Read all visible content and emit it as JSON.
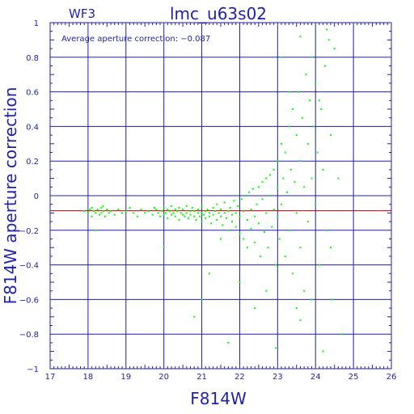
{
  "chart_data": {
    "type": "scatter",
    "title": "lmc_u63s02",
    "corner_label": "WF3",
    "annotation": "Average aperture correction: −0.087",
    "xlabel": "F814W",
    "ylabel": "F814W aperture correction",
    "xlim": [
      17,
      26
    ],
    "ylim": [
      -1,
      1
    ],
    "x_ticks": [
      17,
      18,
      19,
      20,
      21,
      22,
      23,
      24,
      25,
      26
    ],
    "x_tick_labels": [
      "17",
      "18",
      "19",
      "20",
      "21",
      "22",
      "23",
      "24",
      "25",
      "26"
    ],
    "y_ticks": [
      -1,
      -0.8,
      -0.6,
      -0.4,
      -0.2,
      0,
      0.2,
      0.4,
      0.6,
      0.8,
      1
    ],
    "y_tick_labels": [
      "−1",
      "−0.8",
      "−0.6",
      "−0.4",
      "−0.2",
      "0",
      "0.2",
      "0.4",
      "0.6",
      "0.8",
      "1"
    ],
    "grid": true,
    "average_line": -0.087,
    "colors": {
      "points": "#00ff00",
      "average_line": "#c00000",
      "axes": "#1f1fb0",
      "grid": "#1f1fb0"
    },
    "series": [
      {
        "points": [
          [
            17.9,
            -0.09
          ],
          [
            18.0,
            -0.1
          ],
          [
            18.05,
            -0.08
          ],
          [
            18.1,
            -0.07
          ],
          [
            18.1,
            -0.12
          ],
          [
            18.15,
            -0.09
          ],
          [
            18.2,
            -0.1
          ],
          [
            18.2,
            -0.2
          ],
          [
            18.25,
            -0.08
          ],
          [
            18.3,
            -0.11
          ],
          [
            18.35,
            -0.07
          ],
          [
            18.35,
            -0.1
          ],
          [
            18.4,
            -0.09
          ],
          [
            18.4,
            -0.06
          ],
          [
            18.45,
            -0.12
          ],
          [
            18.5,
            -0.08
          ],
          [
            18.55,
            -0.1
          ],
          [
            18.6,
            -0.09
          ],
          [
            18.7,
            -0.11
          ],
          [
            18.8,
            -0.08
          ],
          [
            18.9,
            -0.1
          ],
          [
            19.0,
            -0.09
          ],
          [
            19.1,
            -0.07
          ],
          [
            19.2,
            -0.1
          ],
          [
            19.3,
            -0.12
          ],
          [
            19.4,
            -0.08
          ],
          [
            19.5,
            -0.1
          ],
          [
            19.6,
            -0.09
          ],
          [
            19.7,
            -0.11
          ],
          [
            19.75,
            -0.07
          ],
          [
            19.8,
            -0.08
          ],
          [
            19.85,
            -0.1
          ],
          [
            19.9,
            -0.12
          ],
          [
            19.95,
            -0.09
          ],
          [
            20.0,
            -0.07
          ],
          [
            20.0,
            -0.11
          ],
          [
            20.05,
            -0.1
          ],
          [
            20.1,
            -0.08
          ],
          [
            20.1,
            -0.13
          ],
          [
            20.15,
            -0.09
          ],
          [
            20.2,
            -0.06
          ],
          [
            20.2,
            -0.11
          ],
          [
            20.25,
            -0.1
          ],
          [
            20.3,
            -0.12
          ],
          [
            20.3,
            -0.08
          ],
          [
            20.35,
            -0.09
          ],
          [
            20.4,
            -0.14
          ],
          [
            20.4,
            -0.07
          ],
          [
            20.45,
            -0.1
          ],
          [
            20.5,
            -0.11
          ],
          [
            20.5,
            -0.08
          ],
          [
            20.55,
            -0.12
          ],
          [
            20.6,
            -0.1
          ],
          [
            20.6,
            -0.06
          ],
          [
            20.65,
            -0.13
          ],
          [
            20.7,
            -0.09
          ],
          [
            20.7,
            -0.11
          ],
          [
            20.75,
            -0.07
          ],
          [
            20.8,
            -0.12
          ],
          [
            20.8,
            -0.09
          ],
          [
            20.85,
            -0.14
          ],
          [
            20.9,
            -0.1
          ],
          [
            20.9,
            -0.08
          ],
          [
            20.95,
            -0.12
          ],
          [
            21.0,
            -0.1
          ],
          [
            21.0,
            -0.15
          ],
          [
            21.0,
            -0.06
          ],
          [
            21.05,
            -0.11
          ],
          [
            21.1,
            -0.09
          ],
          [
            21.1,
            -0.13
          ],
          [
            21.15,
            -0.08
          ],
          [
            21.2,
            -0.12
          ],
          [
            21.2,
            -0.1
          ],
          [
            21.25,
            -0.16
          ],
          [
            21.3,
            -0.07
          ],
          [
            21.3,
            -0.11
          ],
          [
            21.35,
            -0.09
          ],
          [
            21.4,
            -0.14
          ],
          [
            21.4,
            -0.05
          ],
          [
            21.45,
            -0.1
          ],
          [
            21.5,
            -0.12
          ],
          [
            21.5,
            -0.08
          ],
          [
            21.55,
            -0.17
          ],
          [
            21.6,
            -0.1
          ],
          [
            21.6,
            -0.04
          ],
          [
            21.65,
            -0.13
          ],
          [
            21.7,
            -0.09
          ],
          [
            21.7,
            -0.2
          ],
          [
            21.75,
            -0.07
          ],
          [
            21.8,
            -0.11
          ],
          [
            21.8,
            -0.15
          ],
          [
            21.85,
            -0.03
          ],
          [
            21.9,
            -0.1
          ],
          [
            21.9,
            -0.18
          ],
          [
            21.95,
            -0.06
          ],
          [
            22.0,
            -0.12
          ],
          [
            22.0,
            -0.22
          ],
          [
            22.05,
            -0.02
          ],
          [
            22.1,
            -0.09
          ],
          [
            22.1,
            -0.25
          ],
          [
            22.15,
            0.0
          ],
          [
            22.2,
            -0.14
          ],
          [
            22.2,
            -0.3
          ],
          [
            22.25,
            0.02
          ],
          [
            22.3,
            -0.08
          ],
          [
            22.3,
            -0.19
          ],
          [
            22.35,
            0.04
          ],
          [
            22.4,
            -0.12
          ],
          [
            22.4,
            -0.27
          ],
          [
            22.45,
            -0.05
          ],
          [
            22.5,
            0.05
          ],
          [
            22.5,
            -0.16
          ],
          [
            22.55,
            -0.35
          ],
          [
            22.6,
            -0.02
          ],
          [
            22.6,
            0.08
          ],
          [
            22.65,
            -0.21
          ],
          [
            22.7,
            -0.1
          ],
          [
            22.7,
            0.1
          ],
          [
            22.75,
            -0.3
          ],
          [
            22.8,
            0.0
          ],
          [
            22.8,
            0.12
          ],
          [
            22.85,
            -0.18
          ],
          [
            22.9,
            -0.08
          ],
          [
            22.9,
            0.15
          ],
          [
            22.95,
            -0.4
          ],
          [
            23.0,
            0.05
          ],
          [
            23.0,
            -0.12
          ],
          [
            23.0,
            0.2
          ],
          [
            23.05,
            -0.25
          ],
          [
            23.1,
            0.3
          ],
          [
            23.1,
            -0.05
          ],
          [
            23.15,
            0.1
          ],
          [
            23.2,
            -0.35
          ],
          [
            23.2,
            0.25
          ],
          [
            23.25,
            0.02
          ],
          [
            23.3,
            0.4
          ],
          [
            23.3,
            -0.2
          ],
          [
            23.35,
            0.15
          ],
          [
            23.4,
            0.5
          ],
          [
            23.4,
            -0.45
          ],
          [
            23.45,
            0.08
          ],
          [
            23.5,
            0.35
          ],
          [
            23.5,
            -0.1
          ],
          [
            23.55,
            0.6
          ],
          [
            23.6,
            0.2
          ],
          [
            23.6,
            -0.3
          ],
          [
            23.65,
            0.45
          ],
          [
            23.7,
            0.05
          ],
          [
            23.7,
            -0.55
          ],
          [
            23.75,
            0.7
          ],
          [
            23.8,
            0.3
          ],
          [
            23.8,
            -0.15
          ],
          [
            23.85,
            0.55
          ],
          [
            23.9,
            0.1
          ],
          [
            23.9,
            -0.6
          ],
          [
            23.95,
            0.4
          ],
          [
            24.0,
            0.65
          ],
          [
            24.0,
            -0.05
          ],
          [
            24.05,
            0.25
          ],
          [
            24.1,
            -0.4
          ],
          [
            24.15,
            0.5
          ],
          [
            24.2,
            0.15
          ],
          [
            24.25,
            0.75
          ],
          [
            24.3,
            -0.2
          ],
          [
            24.35,
            0.9
          ],
          [
            24.4,
            0.35
          ],
          [
            24.45,
            -0.6
          ],
          [
            24.5,
            0.85
          ],
          [
            24.6,
            0.1
          ],
          [
            24.7,
            -0.8
          ],
          [
            23.6,
            0.92
          ],
          [
            24.3,
            0.96
          ],
          [
            23.1,
            0.8
          ],
          [
            22.95,
            -0.88
          ],
          [
            21.7,
            -0.85
          ],
          [
            20.8,
            -0.7
          ],
          [
            21.0,
            -0.6
          ],
          [
            22.4,
            -0.65
          ],
          [
            23.6,
            -0.72
          ],
          [
            20.0,
            -0.3
          ],
          [
            24.2,
            -0.9
          ],
          [
            21.2,
            -0.45
          ],
          [
            22.0,
            -0.5
          ],
          [
            23.3,
            0.6
          ],
          [
            23.9,
            0.8
          ],
          [
            24.1,
            0.55
          ],
          [
            22.7,
            -0.55
          ],
          [
            23.5,
            -0.65
          ],
          [
            24.4,
            -0.3
          ],
          [
            21.5,
            -0.25
          ]
        ]
      }
    ]
  }
}
